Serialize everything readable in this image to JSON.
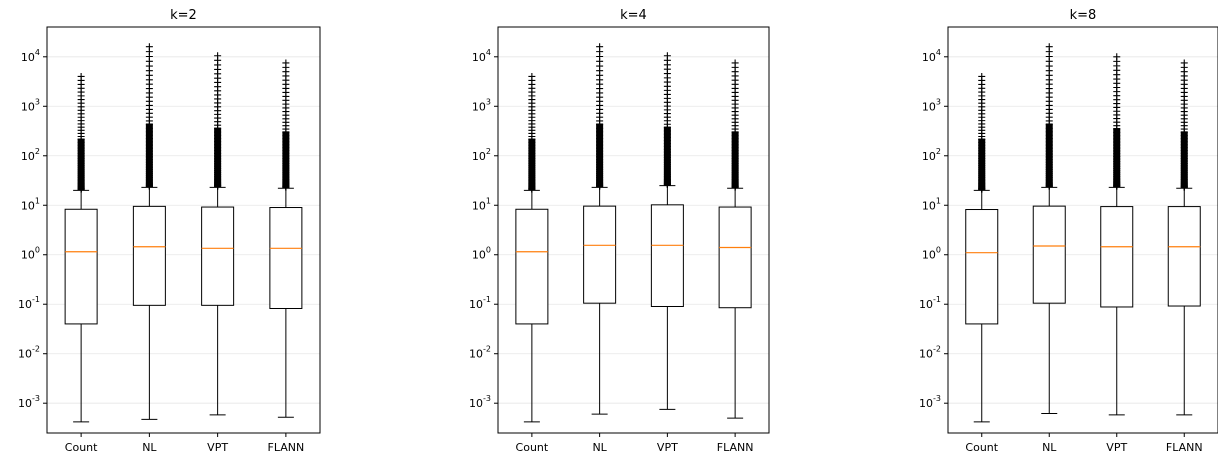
{
  "chart_data": [
    {
      "type": "boxplot",
      "title": "k=2",
      "yscale": "log",
      "ylim": [
        0.00025,
        40000
      ],
      "yticks": [
        {
          "mant": "10",
          "exp": "-3",
          "value": 0.001
        },
        {
          "mant": "10",
          "exp": "-2",
          "value": 0.01
        },
        {
          "mant": "10",
          "exp": "-1",
          "value": 0.1
        },
        {
          "mant": "10",
          "exp": "0",
          "value": 1
        },
        {
          "mant": "10",
          "exp": "1",
          "value": 10
        },
        {
          "mant": "10",
          "exp": "2",
          "value": 100
        },
        {
          "mant": "10",
          "exp": "3",
          "value": 1000
        },
        {
          "mant": "10",
          "exp": "4",
          "value": 10000
        }
      ],
      "grid": "horizontal",
      "categories": [
        "Count",
        "NL",
        "VPT",
        "FLANN"
      ],
      "boxes": [
        {
          "whisker_low": 0.00042,
          "q1": 0.04,
          "median": 1.15,
          "q3": 8.3,
          "whisker_high": 20,
          "flier_max": 4000
        },
        {
          "whisker_low": 0.00047,
          "q1": 0.095,
          "median": 1.45,
          "q3": 9.5,
          "whisker_high": 23,
          "flier_max": 16000
        },
        {
          "whisker_low": 0.00058,
          "q1": 0.095,
          "median": 1.35,
          "q3": 9.2,
          "whisker_high": 23,
          "flier_max": 10500
        },
        {
          "whisker_low": 0.00052,
          "q1": 0.082,
          "median": 1.35,
          "q3": 9.0,
          "whisker_high": 22,
          "flier_max": 7500
        }
      ]
    },
    {
      "type": "boxplot",
      "title": "k=4",
      "yscale": "log",
      "ylim": [
        0.00025,
        40000
      ],
      "yticks": [
        {
          "mant": "10",
          "exp": "-3",
          "value": 0.001
        },
        {
          "mant": "10",
          "exp": "-2",
          "value": 0.01
        },
        {
          "mant": "10",
          "exp": "-1",
          "value": 0.1
        },
        {
          "mant": "10",
          "exp": "0",
          "value": 1
        },
        {
          "mant": "10",
          "exp": "1",
          "value": 10
        },
        {
          "mant": "10",
          "exp": "2",
          "value": 100
        },
        {
          "mant": "10",
          "exp": "3",
          "value": 1000
        },
        {
          "mant": "10",
          "exp": "4",
          "value": 10000
        }
      ],
      "grid": "horizontal",
      "categories": [
        "Count",
        "NL",
        "VPT",
        "FLANN"
      ],
      "boxes": [
        {
          "whisker_low": 0.00042,
          "q1": 0.04,
          "median": 1.15,
          "q3": 8.3,
          "whisker_high": 20,
          "flier_max": 4000
        },
        {
          "whisker_low": 0.0006,
          "q1": 0.105,
          "median": 1.55,
          "q3": 9.6,
          "whisker_high": 23,
          "flier_max": 16000
        },
        {
          "whisker_low": 0.00075,
          "q1": 0.09,
          "median": 1.55,
          "q3": 10.2,
          "whisker_high": 25,
          "flier_max": 10500
        },
        {
          "whisker_low": 0.0005,
          "q1": 0.085,
          "median": 1.4,
          "q3": 9.2,
          "whisker_high": 22,
          "flier_max": 7500
        }
      ]
    },
    {
      "type": "boxplot",
      "title": "k=8",
      "yscale": "log",
      "ylim": [
        0.00025,
        40000
      ],
      "yticks": [
        {
          "mant": "10",
          "exp": "-3",
          "value": 0.001
        },
        {
          "mant": "10",
          "exp": "-2",
          "value": 0.01
        },
        {
          "mant": "10",
          "exp": "-1",
          "value": 0.1
        },
        {
          "mant": "10",
          "exp": "0",
          "value": 1
        },
        {
          "mant": "10",
          "exp": "1",
          "value": 10
        },
        {
          "mant": "10",
          "exp": "2",
          "value": 100
        },
        {
          "mant": "10",
          "exp": "3",
          "value": 1000
        },
        {
          "mant": "10",
          "exp": "4",
          "value": 10000
        }
      ],
      "grid": "horizontal",
      "categories": [
        "Count",
        "NL",
        "VPT",
        "FLANN"
      ],
      "boxes": [
        {
          "whisker_low": 0.00042,
          "q1": 0.04,
          "median": 1.1,
          "q3": 8.2,
          "whisker_high": 20,
          "flier_max": 4000
        },
        {
          "whisker_low": 0.00062,
          "q1": 0.105,
          "median": 1.5,
          "q3": 9.6,
          "whisker_high": 23,
          "flier_max": 16000
        },
        {
          "whisker_low": 0.00058,
          "q1": 0.088,
          "median": 1.45,
          "q3": 9.4,
          "whisker_high": 23,
          "flier_max": 10000
        },
        {
          "whisker_low": 0.00058,
          "q1": 0.092,
          "median": 1.45,
          "q3": 9.4,
          "whisker_high": 22,
          "flier_max": 7500
        }
      ]
    }
  ],
  "colors": {
    "box": "#000000",
    "median": "#ff7f0e",
    "grid": "#e6e6e6",
    "flier": "#000000"
  }
}
